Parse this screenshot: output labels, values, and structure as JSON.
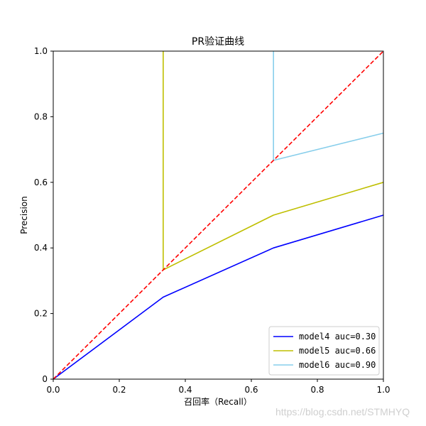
{
  "chart_data": {
    "type": "line",
    "title": "PR验证曲线",
    "xlabel": "召回率（Recall）",
    "ylabel": "Precision",
    "xlim": [
      0,
      1
    ],
    "ylim": [
      0,
      1
    ],
    "x_ticks": [
      "0.0",
      "0.2",
      "0.4",
      "0.6",
      "0.8",
      "1.0"
    ],
    "y_ticks": [
      "0",
      "0.2",
      "0.4",
      "0.6",
      "0.8",
      "1.0"
    ],
    "grid": false,
    "legend_position": "lower-right",
    "series": [
      {
        "name": "model4 auc=0.30",
        "color": "#0000ff",
        "dashed": false,
        "x": [
          0,
          0.333,
          0.667,
          1.0
        ],
        "y": [
          0,
          0.25,
          0.4,
          0.5
        ]
      },
      {
        "name": "model5 auc=0.66",
        "color": "#bfbf00",
        "dashed": false,
        "x": [
          0.333,
          0.333,
          0.667,
          1.0
        ],
        "y": [
          1.0,
          0.333,
          0.5,
          0.6
        ]
      },
      {
        "name": "model6 auc=0.90",
        "color": "#87ceeb",
        "dashed": false,
        "x": [
          0.667,
          0.667,
          1.0
        ],
        "y": [
          1.0,
          0.667,
          0.75
        ]
      },
      {
        "name": "",
        "color": "#ff0000",
        "dashed": true,
        "x": [
          0,
          1
        ],
        "y": [
          0,
          1
        ]
      }
    ]
  },
  "watermark": "https://blog.csdn.net/STMHYQ"
}
